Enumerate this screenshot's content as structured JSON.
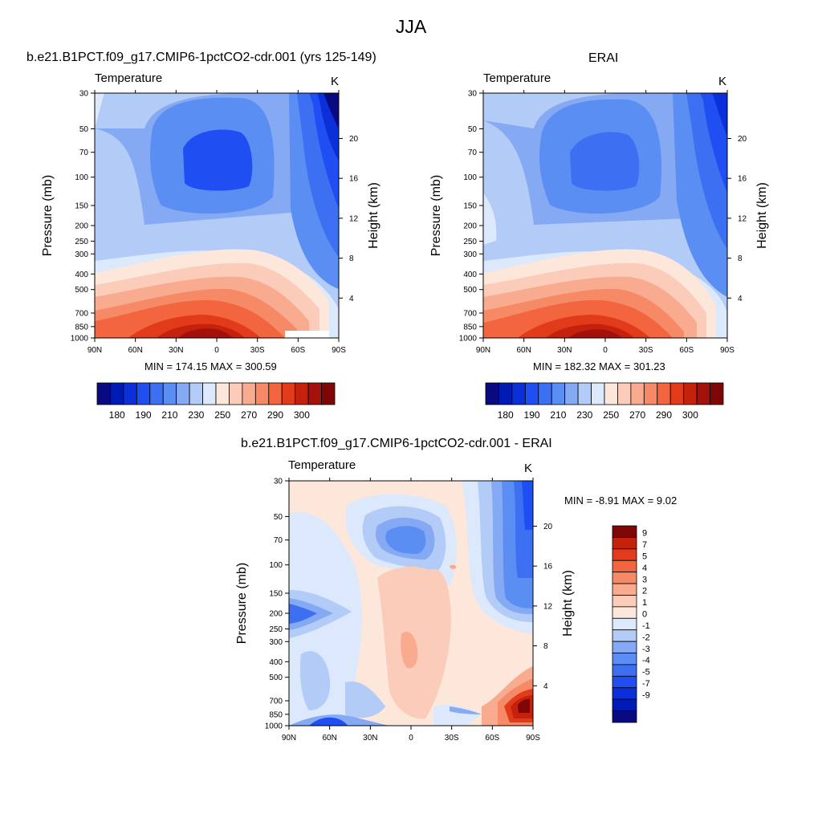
{
  "figure_title": "JJA",
  "colors": {
    "abs_levels": [
      "#0a0a80",
      "#001ab4",
      "#0b2fd8",
      "#1f4ff2",
      "#3c6ff2",
      "#5a8ef2",
      "#86a9f4",
      "#b3cbf7",
      "#dce8fb",
      "#fde6da",
      "#fcccba",
      "#f9ab90",
      "#f68a66",
      "#f2653e",
      "#e13b1c",
      "#c4220c",
      "#a4100a",
      "#7e0606"
    ],
    "diff_levels": [
      "#0a0a80",
      "#001ab4",
      "#0b2fd8",
      "#1f4ff2",
      "#3c6ff2",
      "#5a8ef2",
      "#86a9f4",
      "#b3cbf7",
      "#dce8fb",
      "#fde6da",
      "#fcccba",
      "#f9ab90",
      "#f68a66",
      "#f2653e",
      "#e13b1c",
      "#c4220c",
      "#7e0606"
    ]
  },
  "panels": [
    {
      "title": "b.e21.B1PCT.f09_g17.CMIP6-1pctCO2-cdr.001 (yrs 125-149)",
      "var_label": "Temperature",
      "units": "K",
      "ylabel": "Pressure (mb)",
      "y2label": "Height (km)",
      "minmax": "MIN = 174.15  MAX = 300.59"
    },
    {
      "title": "ERAI",
      "var_label": "Temperature",
      "units": "K",
      "ylabel": "Pressure (mb)",
      "y2label": "Height (km)",
      "minmax": "MIN = 182.32  MAX = 301.23"
    },
    {
      "title": "b.e21.B1PCT.f09_g17.CMIP6-1pctCO2-cdr.001 - ERAI",
      "var_label": "Temperature",
      "units": "K",
      "ylabel": "Pressure (mb)",
      "y2label": "Height (km)",
      "minmax": "MIN =  -8.91  MAX =   9.02"
    }
  ],
  "chart_data": [
    {
      "type": "heatmap",
      "title": "b.e21.B1PCT.f09_g17.CMIP6-1pctCO2-cdr.001 (yrs 125-149)",
      "subtitle": "Temperature",
      "units": "K",
      "xlabel": "",
      "ylabel": "Pressure (mb)",
      "y2label": "Height (km)",
      "x_ticks": [
        "90N",
        "60N",
        "30N",
        "0",
        "30S",
        "60S",
        "90S"
      ],
      "y_ticks": [
        30,
        50,
        70,
        100,
        150,
        200,
        250,
        300,
        400,
        500,
        700,
        850,
        1000
      ],
      "y2_ticks": [
        4,
        8,
        12,
        16,
        20
      ],
      "y_scale": "log",
      "colorbar_ticks": [
        180,
        190,
        210,
        230,
        250,
        270,
        290,
        300
      ],
      "colorbar_orientation": "horizontal",
      "min": 174.15,
      "max": 300.59
    },
    {
      "type": "heatmap",
      "title": "ERAI",
      "subtitle": "Temperature",
      "units": "K",
      "xlabel": "",
      "ylabel": "Pressure (mb)",
      "y2label": "Height (km)",
      "x_ticks": [
        "90N",
        "60N",
        "30N",
        "0",
        "30S",
        "60S",
        "90S"
      ],
      "y_ticks": [
        30,
        50,
        70,
        100,
        150,
        200,
        250,
        300,
        400,
        500,
        700,
        850,
        1000
      ],
      "y2_ticks": [
        4,
        8,
        12,
        16,
        20
      ],
      "y_scale": "log",
      "colorbar_ticks": [
        180,
        190,
        210,
        230,
        250,
        270,
        290,
        300
      ],
      "colorbar_orientation": "horizontal",
      "min": 182.32,
      "max": 301.23
    },
    {
      "type": "heatmap",
      "title": "b.e21.B1PCT.f09_g17.CMIP6-1pctCO2-cdr.001 - ERAI",
      "subtitle": "Temperature",
      "units": "K",
      "xlabel": "",
      "ylabel": "Pressure (mb)",
      "y2label": "Height (km)",
      "x_ticks": [
        "90N",
        "60N",
        "30N",
        "0",
        "30S",
        "60S",
        "90S"
      ],
      "y_ticks": [
        30,
        50,
        70,
        100,
        150,
        200,
        250,
        300,
        400,
        500,
        700,
        850,
        1000
      ],
      "y2_ticks": [
        4,
        8,
        12,
        16,
        20
      ],
      "y_scale": "log",
      "colorbar_ticks": [
        9,
        7,
        5,
        4,
        3,
        2,
        1,
        0,
        -1,
        -2,
        -3,
        -4,
        -5,
        -7,
        -9
      ],
      "colorbar_orientation": "vertical",
      "min": -8.91,
      "max": 9.02
    }
  ]
}
